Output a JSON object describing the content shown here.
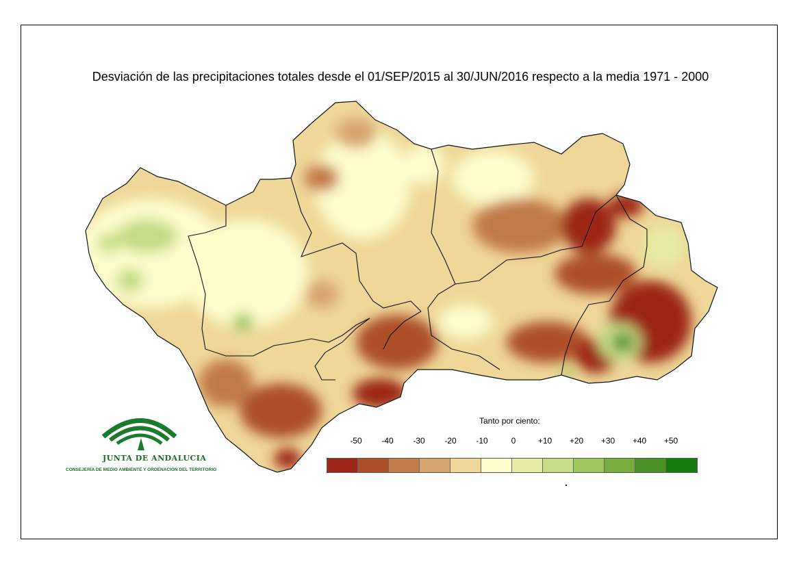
{
  "title": "Desviación de las precipitaciones totales desde el 01/SEP/2015 al 30/JUN/2016 respecto a la media 1971 - 2000",
  "legend": {
    "title": "Tanto por ciento:",
    "ticks": [
      "-50",
      "-40",
      "-30",
      "-20",
      "-10",
      "0",
      "+10",
      "+20",
      "+30",
      "+40",
      "+50"
    ],
    "colors": [
      "#9c2617",
      "#ae4f2b",
      "#c27a4a",
      "#d7a56f",
      "#eed799",
      "#fefccd",
      "#e7eba5",
      "#c6dc86",
      "#9fc760",
      "#76ad3d",
      "#4b9227",
      "#157d0c"
    ]
  },
  "logo": {
    "name": "JUNTA DE ANDALUCIA",
    "subtitle": "CONSEJERÍA DE MEDIO AMBIENTE Y ORDENACIÓN DEL TERRITORIO"
  }
}
